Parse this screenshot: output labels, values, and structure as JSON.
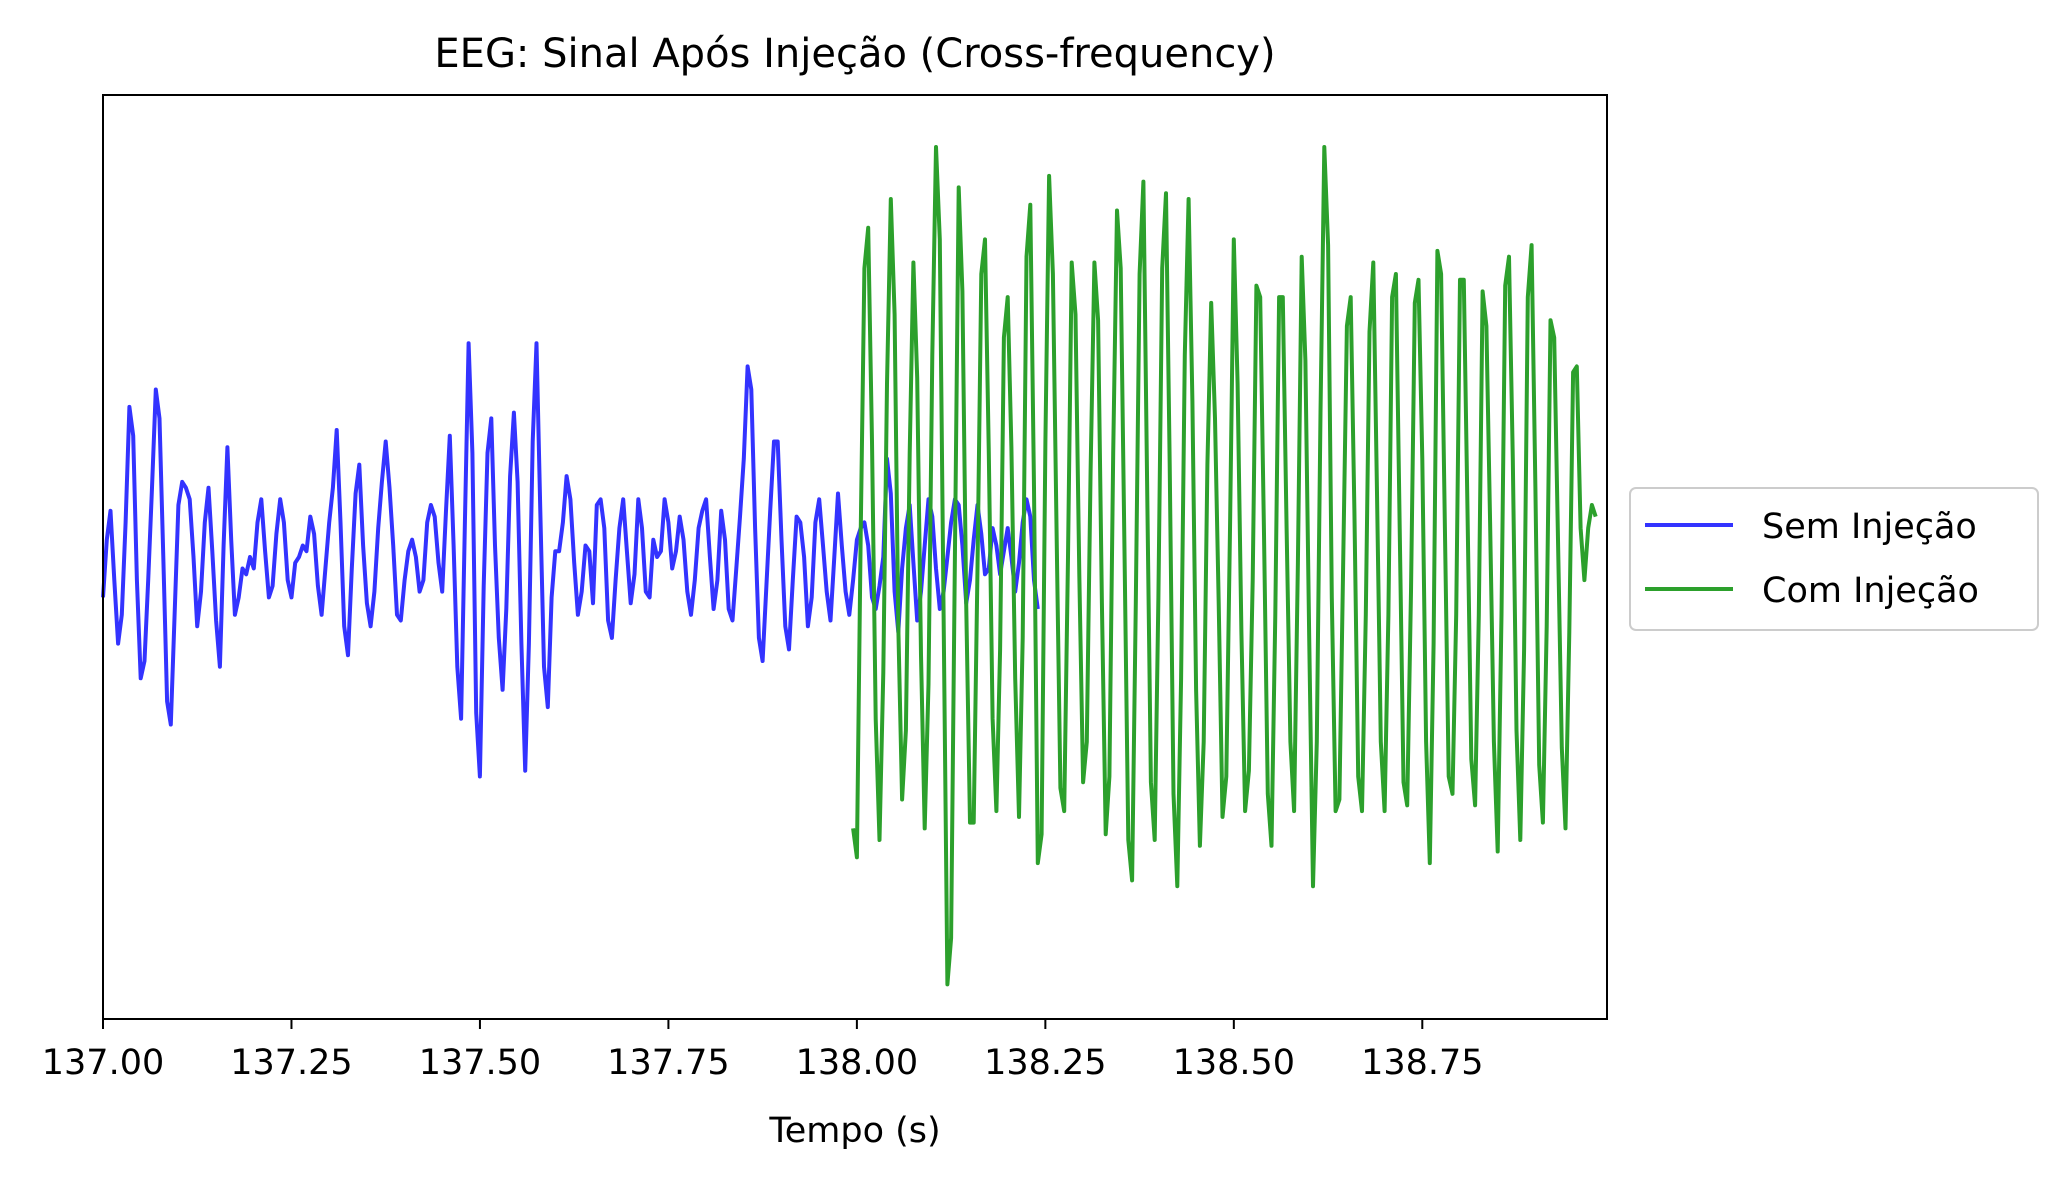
{
  "chart_data": {
    "type": "line",
    "title": "EEG: Sinal Após Injeção (Cross-frequency)",
    "xlabel": "Tempo (s)",
    "ylabel": "",
    "xlim": [
      137.0,
      138.995
    ],
    "ylim": [
      -4.0,
      4.0
    ],
    "y_ticks_shown": false,
    "grid": false,
    "legend_position": "center-right outside",
    "x_ticks": [
      137.0,
      137.25,
      137.5,
      137.75,
      138.0,
      138.25,
      138.5,
      138.75
    ],
    "x_tick_labels": [
      "137.00",
      "137.25",
      "137.50",
      "137.75",
      "138.00",
      "138.25",
      "138.50",
      "138.75"
    ],
    "series": [
      {
        "name": "Sem Injeção",
        "color": "#3333ff",
        "x_start": 137.0,
        "x_step": 0.005,
        "values": [
          -0.35,
          0.15,
          0.4,
          -0.2,
          -0.75,
          -0.5,
          0.3,
          1.3,
          1.05,
          -0.2,
          -1.05,
          -0.9,
          -0.2,
          0.6,
          1.45,
          1.2,
          0.0,
          -1.25,
          -1.45,
          -0.5,
          0.45,
          0.65,
          0.6,
          0.5,
          0.0,
          -0.6,
          -0.3,
          0.3,
          0.6,
          0.05,
          -0.55,
          -0.95,
          0.1,
          0.95,
          0.15,
          -0.5,
          -0.35,
          -0.1,
          -0.15,
          0.0,
          -0.1,
          0.3,
          0.5,
          0.05,
          -0.35,
          -0.25,
          0.2,
          0.5,
          0.3,
          -0.2,
          -0.35,
          -0.05,
          0.0,
          0.1,
          0.05,
          0.35,
          0.2,
          -0.25,
          -0.5,
          -0.1,
          0.3,
          0.6,
          1.1,
          0.3,
          -0.6,
          -0.85,
          -0.1,
          0.55,
          0.8,
          0.1,
          -0.4,
          -0.6,
          -0.3,
          0.25,
          0.65,
          1.0,
          0.6,
          0.1,
          -0.5,
          -0.55,
          -0.2,
          0.05,
          0.15,
          0.0,
          -0.3,
          -0.2,
          0.3,
          0.45,
          0.35,
          -0.05,
          -0.3,
          0.4,
          1.05,
          0.1,
          -0.95,
          -1.4,
          0.3,
          1.85,
          0.9,
          -1.35,
          -1.9,
          -0.25,
          0.9,
          1.2,
          0.1,
          -0.7,
          -1.15,
          -0.45,
          0.7,
          1.25,
          0.65,
          -0.75,
          -1.85,
          -0.75,
          1.0,
          1.85,
          0.4,
          -0.95,
          -1.3,
          -0.35,
          0.05,
          0.05,
          0.3,
          0.7,
          0.5,
          -0.05,
          -0.5,
          -0.3,
          0.1,
          0.05,
          -0.4,
          0.45,
          0.5,
          0.25,
          -0.55,
          -0.7,
          -0.2,
          0.25,
          0.5,
          0.05,
          -0.4,
          -0.15,
          0.5,
          0.25,
          -0.3,
          -0.35,
          0.15,
          0.0,
          0.05,
          0.5,
          0.3,
          -0.1,
          0.05,
          0.35,
          0.15,
          -0.3,
          -0.5,
          -0.2,
          0.25,
          0.4,
          0.5,
          0.0,
          -0.45,
          -0.2,
          0.4,
          0.15,
          -0.45,
          -0.55,
          -0.1,
          0.35,
          0.85,
          1.65,
          1.45,
          0.25,
          -0.7,
          -0.9,
          -0.25,
          0.4,
          1.0,
          1.0,
          0.15,
          -0.6,
          -0.8,
          -0.2,
          0.35,
          0.3,
          0.0,
          -0.6,
          -0.35,
          0.3,
          0.5,
          0.1,
          -0.3,
          -0.55,
          0.0,
          0.55,
          0.1,
          -0.3,
          -0.5,
          -0.2,
          0.15,
          0.25,
          0.3,
          0.1,
          -0.35,
          -0.45,
          -0.25,
          0.0,
          0.85,
          0.55,
          -0.3,
          -0.65,
          -0.1,
          0.25,
          0.45,
          -0.05,
          -0.55,
          -0.3,
          0.1,
          0.5,
          0.35,
          -0.1,
          -0.45,
          -0.3,
          0.0,
          0.3,
          0.5,
          0.45,
          0.1,
          -0.4,
          -0.2,
          0.15,
          0.45,
          0.2,
          -0.15,
          -0.1,
          0.25,
          0.1,
          -0.15,
          0.05,
          0.25,
          0.0,
          -0.3,
          -0.05,
          0.3,
          0.5,
          0.35,
          -0.2,
          -0.45
        ]
      },
      {
        "name": "Com Injeção",
        "color": "#2ca02c",
        "x_start": 137.995,
        "x_step": 0.005,
        "values": [
          -2.35,
          -2.6,
          0.2,
          2.5,
          2.85,
          1.0,
          -1.4,
          -2.45,
          -1.0,
          1.5,
          3.1,
          2.1,
          -0.6,
          -2.1,
          -1.5,
          0.9,
          2.55,
          1.55,
          -0.85,
          -2.35,
          -1.1,
          1.75,
          3.55,
          2.75,
          -0.5,
          -3.7,
          -3.3,
          0.0,
          3.2,
          2.3,
          -0.4,
          -2.3,
          -2.3,
          -0.1,
          2.45,
          2.75,
          0.9,
          -1.4,
          -2.2,
          -0.8,
          1.9,
          2.25,
          0.95,
          -1.05,
          -2.25,
          -0.7,
          2.6,
          3.05,
          0.6,
          -2.65,
          -2.4,
          1.0,
          3.3,
          2.45,
          0.15,
          -2.0,
          -2.2,
          0.0,
          2.55,
          2.1,
          -0.15,
          -1.95,
          -1.6,
          0.75,
          2.55,
          2.05,
          -0.4,
          -2.4,
          -1.9,
          0.9,
          3.0,
          2.5,
          0.05,
          -2.45,
          -2.8,
          -0.4,
          2.45,
          3.25,
          0.65,
          -1.95,
          -2.45,
          -0.35,
          2.5,
          3.15,
          0.8,
          -2.05,
          -2.85,
          -1.05,
          1.75,
          3.1,
          1.35,
          -1.15,
          -2.5,
          -1.6,
          0.8,
          2.2,
          1.2,
          -0.4,
          -2.25,
          -1.9,
          0.3,
          2.75,
          1.5,
          -0.65,
          -2.2,
          -1.85,
          -0.2,
          2.35,
          2.25,
          0.2,
          -2.05,
          -2.5,
          -0.5,
          2.25,
          2.25,
          0.25,
          -1.6,
          -2.2,
          -0.05,
          2.6,
          1.7,
          -0.7,
          -2.85,
          -1.6,
          1.25,
          3.55,
          2.7,
          -0.35,
          -2.2,
          -2.1,
          -0.1,
          2.0,
          2.25,
          0.4,
          -1.9,
          -2.2,
          -0.5,
          1.95,
          2.55,
          0.5,
          -1.6,
          -2.2,
          -0.5,
          2.25,
          2.45,
          0.25,
          -1.95,
          -2.15,
          -0.3,
          2.2,
          2.4,
          0.85,
          -1.6,
          -2.65,
          -0.75,
          2.65,
          2.45,
          0.25,
          -1.9,
          -2.05,
          -0.5,
          2.4,
          2.4,
          0.4,
          -1.75,
          -2.15,
          -0.5,
          2.3,
          2.0,
          0.3,
          -1.6,
          -2.55,
          -0.5,
          2.35,
          2.6,
          0.85,
          -1.5,
          -2.45,
          -0.8,
          2.25,
          2.7,
          0.6,
          -1.8,
          -2.3,
          -0.6,
          2.05,
          1.9,
          0.15,
          -1.65,
          -2.35,
          -0.65,
          1.6,
          1.65,
          0.25,
          -0.2,
          0.25,
          0.45,
          0.35
        ]
      }
    ]
  }
}
